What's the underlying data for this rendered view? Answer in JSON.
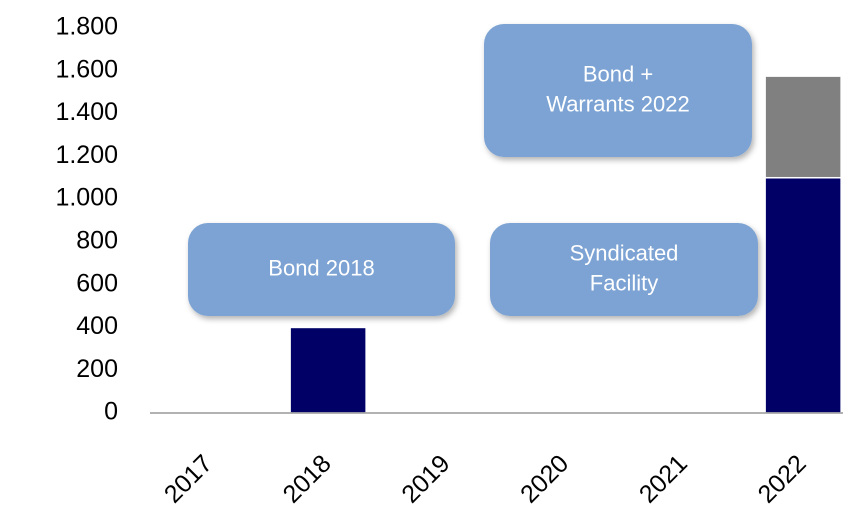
{
  "chart_data": {
    "type": "bar",
    "stacked": true,
    "categories": [
      "2017",
      "2018",
      "2019",
      "2020",
      "2021",
      "2022"
    ],
    "series": [
      {
        "color": "#000066",
        "values": [
          0,
          400,
          0,
          0,
          0,
          1100
        ]
      },
      {
        "color": "#808080",
        "values": [
          0,
          0,
          0,
          0,
          0,
          475
        ]
      }
    ],
    "ylim": [
      0,
      1800
    ],
    "yticks": [
      0,
      200,
      400,
      600,
      800,
      {
        "value": 1000,
        "label": "1.000"
      },
      {
        "value": 1200,
        "label": "1.200"
      },
      {
        "value": 1400,
        "label": "1.400"
      },
      {
        "value": 1600,
        "label": "1.600"
      },
      {
        "value": 1800,
        "label": "1.800"
      }
    ],
    "annotations": [
      {
        "lines": [
          "Bond 2018"
        ]
      },
      {
        "lines": [
          "Syndicated",
          "Facility"
        ]
      },
      {
        "lines": [
          "Bond +",
          "Warrants 2022"
        ]
      }
    ]
  }
}
